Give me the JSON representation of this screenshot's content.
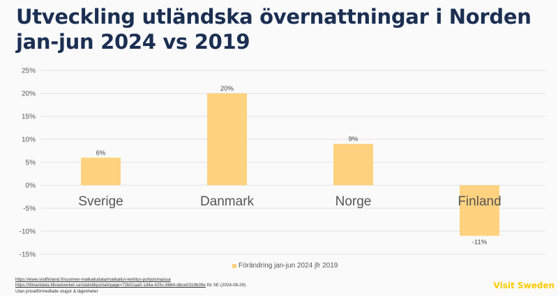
{
  "title": "Utveckling utländska övernattningar i Norden jan-jun 2024 vs 2019",
  "chart_data": {
    "type": "bar",
    "title": "Utveckling utländska övernattningar i Norden jan-jun 2024 vs 2019",
    "categories": [
      "Sverige",
      "Danmark",
      "Norge",
      "Finland"
    ],
    "series": [
      {
        "name": "Förändring jan-jun 2024 jfr 2019",
        "values": [
          6,
          20,
          9,
          -11
        ],
        "color": "#fed27f"
      }
    ],
    "data_labels": [
      "6%",
      "20%",
      "9%",
      "-11%"
    ],
    "xlabel": "",
    "ylabel": "",
    "ylim": [
      -15,
      25
    ],
    "yticks": [
      25,
      20,
      15,
      10,
      5,
      0,
      -5,
      -10,
      -15
    ],
    "ytick_labels": [
      "25%",
      "20%",
      "15%",
      "10%",
      "5%",
      "0%",
      "-5%",
      "-10%",
      "-15%"
    ],
    "grid": true,
    "legend_position": "bottom-center"
  },
  "legend": {
    "label": "Förändring jan-jun 2024 jfr 2019"
  },
  "sources": {
    "line1_link": "https://www.visitfinland.fi/suomen-matkailudata/matkailun-kehitys-pohjoismaissa",
    "line2_link": "https://tillvaxtdata.tillvaxtverket.se/statistikportal#page=72b01aa0-1d4a-425c-8684-dbce0319b39e",
    "line2_suffix": " för SE (2024-08-29)",
    "line3": "Utan privatförmedlade stugor & lägenheter"
  },
  "brand": "Visit Sweden",
  "colors": {
    "title": "#1b2f52",
    "bar": "#fed27f",
    "brand": "#fecb00",
    "grid": "#e2e2e2"
  }
}
